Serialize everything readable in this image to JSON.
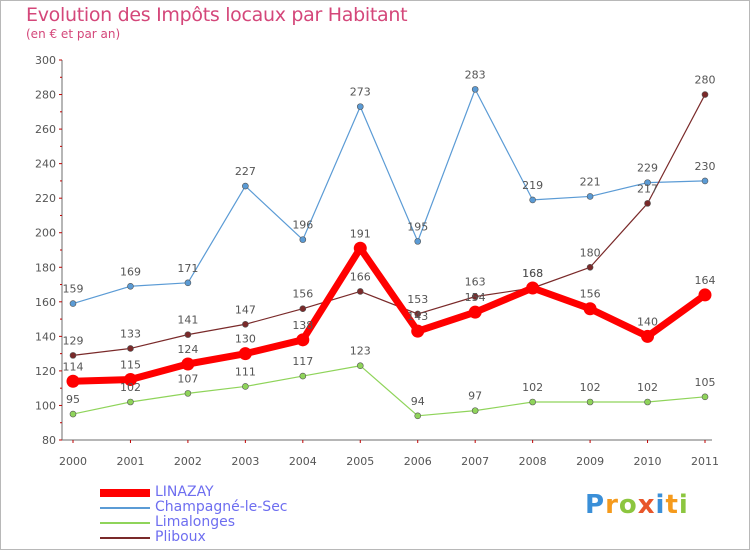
{
  "title": "Evolution des Impôts locaux par Habitant",
  "subtitle": "(en € et par an)",
  "logo": {
    "text": "Proxiti",
    "colors": [
      "#3a8fd8",
      "#f59a1c",
      "#8cc63f",
      "#e8562a",
      "#3a8fd8",
      "#f59a1c",
      "#8cc63f"
    ]
  },
  "chart_data": {
    "type": "line",
    "title": "Evolution des Impôts locaux par Habitant",
    "subtitle": "(en € et par an)",
    "x": [
      "2000",
      "2001",
      "2002",
      "2003",
      "2004",
      "2005",
      "2006",
      "2007",
      "2008",
      "2009",
      "2010",
      "2011"
    ],
    "ylim": [
      80,
      300
    ],
    "yticks": [
      "80",
      "100",
      "120",
      "140",
      "160",
      "180",
      "200",
      "220",
      "240",
      "260",
      "280",
      "300"
    ],
    "grid": false,
    "legend_position": "bottom-left",
    "series": [
      {
        "name": "LINAZAY",
        "color": "#ff0000",
        "values": [
          114,
          115,
          124,
          130,
          138,
          191,
          143,
          154,
          168,
          156,
          140,
          164
        ],
        "labels": [
          "114",
          "115",
          "124",
          "130",
          "138",
          "191",
          "143",
          "154",
          "168",
          "156",
          "140",
          "164"
        ]
      },
      {
        "name": "Champagné-le-Sec",
        "color": "#5b9bd5",
        "values": [
          159,
          169,
          171,
          227,
          196,
          273,
          195,
          283,
          219,
          221,
          229,
          230
        ],
        "labels": [
          "159",
          "169",
          "171",
          "227",
          "196",
          "273",
          "195",
          "283",
          "219",
          "221",
          "229",
          "230"
        ]
      },
      {
        "name": "Limalonges",
        "color": "#8fd45a",
        "values": [
          95,
          102,
          107,
          111,
          117,
          123,
          94,
          97,
          102,
          102,
          102,
          105
        ],
        "labels": [
          "95",
          "102",
          "107",
          "111",
          "117",
          "123",
          "94",
          "97",
          "102",
          "102",
          "102",
          "105"
        ]
      },
      {
        "name": "Pliboux",
        "color": "#7a2a2a",
        "values": [
          129,
          133,
          141,
          147,
          156,
          166,
          153,
          163,
          168,
          180,
          217,
          280
        ],
        "labels": [
          "129",
          "133",
          "141",
          "147",
          "156",
          "166",
          "153",
          "163",
          "168",
          "180",
          "217",
          "280"
        ]
      }
    ]
  }
}
